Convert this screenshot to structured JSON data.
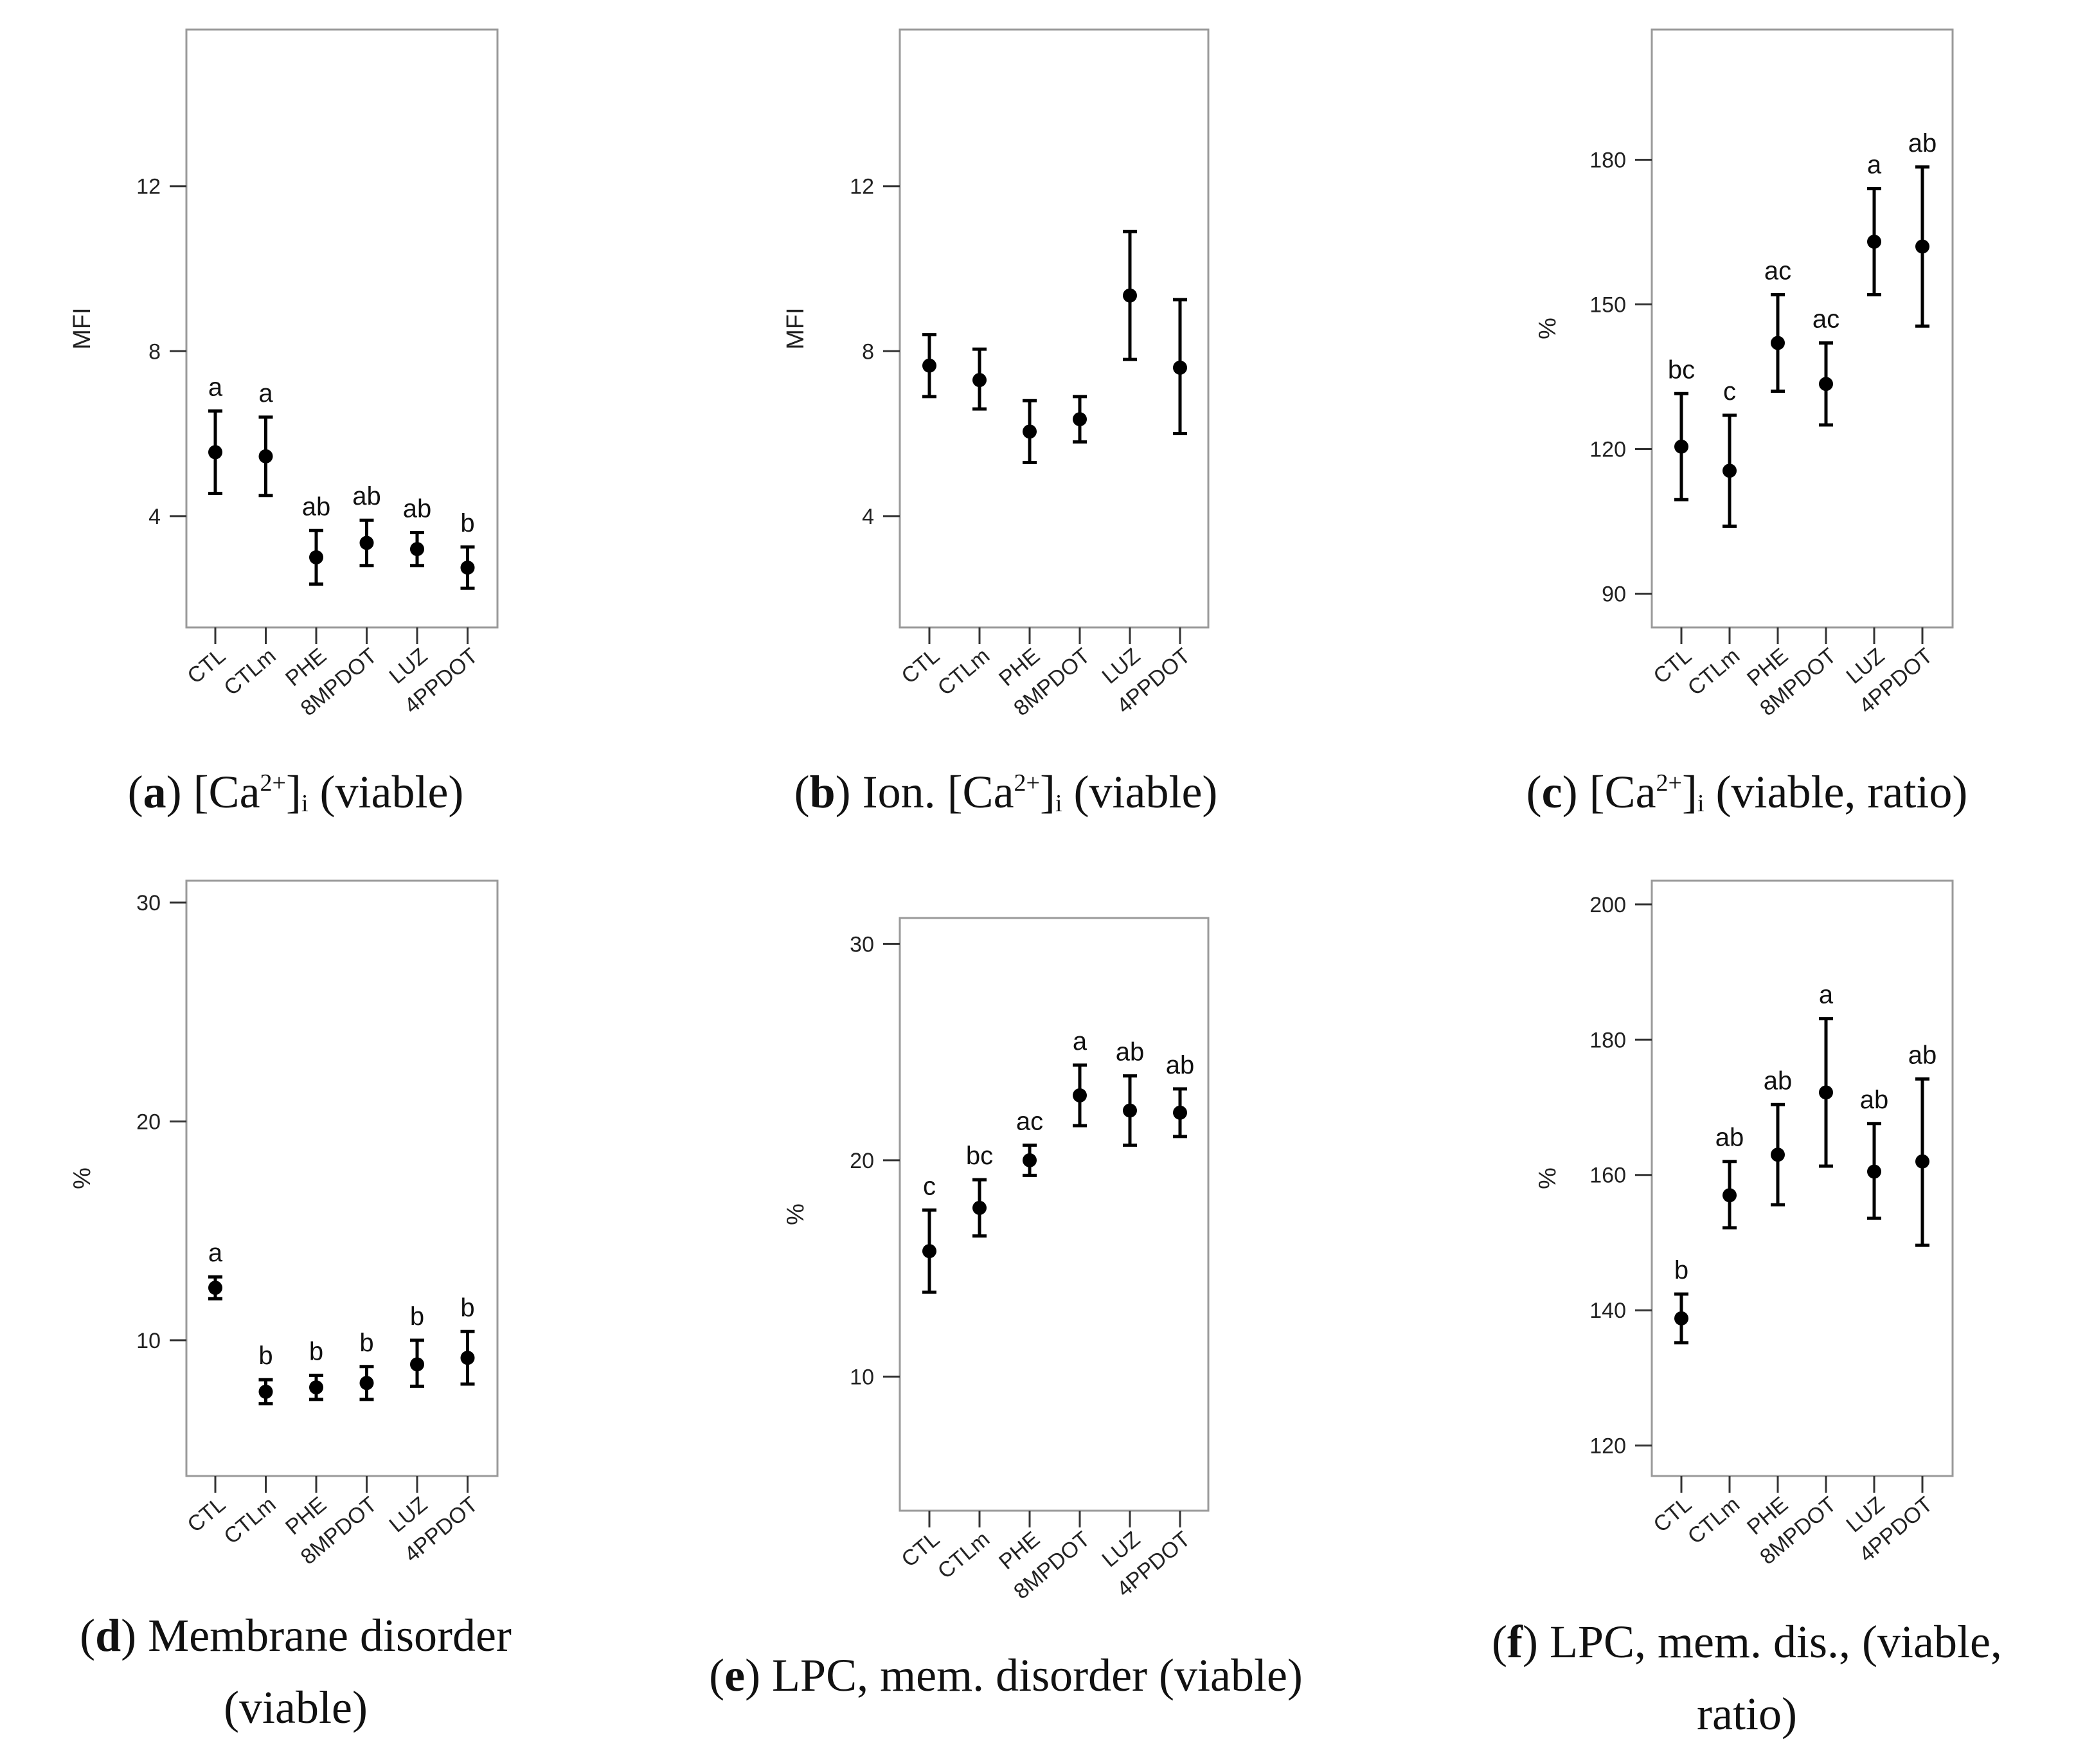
{
  "chart_data": [
    {
      "id": "a",
      "type": "scatter",
      "title": "[Ca2+]i (viable)",
      "caption": {
        "letter": "a",
        "pre": "[Ca",
        "sup": "2+",
        "mid": "]",
        "sub": "i",
        "post": " (viable)"
      },
      "ylabel": "MFI",
      "ylim": [
        1.3,
        15.8
      ],
      "yticks": [
        4,
        8,
        12
      ],
      "categories": [
        "CTL",
        "CTLm",
        "PHE",
        "8MPDOT",
        "LUZ",
        "4PPDOT"
      ],
      "means": [
        5.55,
        5.45,
        3.0,
        3.35,
        3.2,
        2.75
      ],
      "lower": [
        4.55,
        4.5,
        2.35,
        2.8,
        2.8,
        2.25
      ],
      "upper": [
        6.55,
        6.4,
        3.65,
        3.9,
        3.6,
        3.25
      ],
      "letters": [
        "a",
        "a",
        "ab",
        "ab",
        "ab",
        "b"
      ]
    },
    {
      "id": "b",
      "type": "scatter",
      "title": "Ion. [Ca2+]i (viable)",
      "caption": {
        "letter": "b",
        "pre": "Ion. [Ca",
        "sup": "2+",
        "mid": "]",
        "sub": "i",
        "post": " (viable)"
      },
      "ylabel": "MFI",
      "ylim": [
        1.3,
        15.8
      ],
      "yticks": [
        4,
        8,
        12
      ],
      "categories": [
        "CTL",
        "CTLm",
        "PHE",
        "8MPDOT",
        "LUZ",
        "4PPDOT"
      ],
      "means": [
        7.65,
        7.3,
        6.05,
        6.35,
        9.35,
        7.6
      ],
      "lower": [
        6.9,
        6.6,
        5.3,
        5.8,
        7.8,
        6.0
      ],
      "upper": [
        8.4,
        8.05,
        6.8,
        6.9,
        10.9,
        9.25
      ],
      "letters": []
    },
    {
      "id": "c",
      "type": "scatter",
      "title": "[Ca2+]i (viable, ratio)",
      "caption": {
        "letter": "c",
        "pre": "[Ca",
        "sup": "2+",
        "mid": "]",
        "sub": "i",
        "post": " (viable, ratio)"
      },
      "ylabel": "%",
      "ylim": [
        83,
        207
      ],
      "yticks": [
        90,
        120,
        150,
        180
      ],
      "categories": [
        "CTL",
        "CTLm",
        "PHE",
        "8MPDOT",
        "LUZ",
        "4PPDOT"
      ],
      "means": [
        120.5,
        115.5,
        142,
        133.5,
        163,
        162
      ],
      "lower": [
        109.5,
        104,
        132,
        125,
        152,
        145.5
      ],
      "upper": [
        131.5,
        127,
        152,
        142,
        174,
        178.5
      ],
      "letters": [
        "bc",
        "c",
        "ac",
        "ac",
        "a",
        "ab"
      ]
    },
    {
      "id": "d",
      "type": "scatter",
      "title": "Membrane disorder (viable)",
      "caption": {
        "letter": "d",
        "line1": ") Membrane disorder",
        "line2": "(viable)"
      },
      "ylabel": "%",
      "ylim": [
        3.8,
        31.0
      ],
      "yticks": [
        10,
        20,
        30
      ],
      "categories": [
        "CTL",
        "CTLm",
        "PHE",
        "8MPDOT",
        "LUZ",
        "4PPDOT"
      ],
      "means": [
        12.4,
        7.65,
        7.85,
        8.05,
        8.9,
        9.2
      ],
      "lower": [
        11.9,
        7.1,
        7.3,
        7.3,
        7.9,
        8.0
      ],
      "upper": [
        12.9,
        8.2,
        8.4,
        8.8,
        10.0,
        10.4
      ],
      "letters": [
        "a",
        "b",
        "b",
        "b",
        "b",
        "b"
      ]
    },
    {
      "id": "e",
      "type": "scatter",
      "title": "LPC, mem. disorder (viable)",
      "caption": {
        "letter": "e",
        "text": ") LPC, mem. disorder (viable)"
      },
      "ylabel": "%",
      "ylim": [
        3.8,
        31.2
      ],
      "yticks": [
        10,
        20,
        30
      ],
      "categories": [
        "CTL",
        "CTLm",
        "PHE",
        "8MPDOT",
        "LUZ",
        "4PPDOT"
      ],
      "means": [
        15.8,
        17.8,
        20.0,
        23.0,
        22.3,
        22.2
      ],
      "lower": [
        13.9,
        16.5,
        19.3,
        21.6,
        20.7,
        21.1
      ],
      "upper": [
        17.7,
        19.1,
        20.7,
        24.4,
        23.9,
        23.3
      ],
      "letters": [
        "c",
        "bc",
        "ac",
        "a",
        "ab",
        "ab"
      ]
    },
    {
      "id": "f",
      "type": "scatter",
      "title": "LPC, mem. dis., (viable, ratio)",
      "caption": {
        "letter": "f",
        "line1": ") LPC, mem. dis., (viable,",
        "line2": "ratio)"
      },
      "ylabel": "%",
      "ylim": [
        115.5,
        203.5
      ],
      "yticks": [
        120,
        140,
        160,
        180,
        200
      ],
      "categories": [
        "CTL",
        "CTLm",
        "PHE",
        "8MPDOT",
        "LUZ",
        "4PPDOT"
      ],
      "means": [
        138.8,
        157.0,
        163.0,
        172.2,
        160.5,
        162.0
      ],
      "lower": [
        135.2,
        152.2,
        155.6,
        161.3,
        153.6,
        149.6
      ],
      "upper": [
        142.4,
        162.0,
        170.4,
        183.1,
        167.6,
        174.2
      ],
      "letters": [
        "b",
        "ab",
        "ab",
        "a",
        "ab",
        "ab"
      ]
    }
  ]
}
